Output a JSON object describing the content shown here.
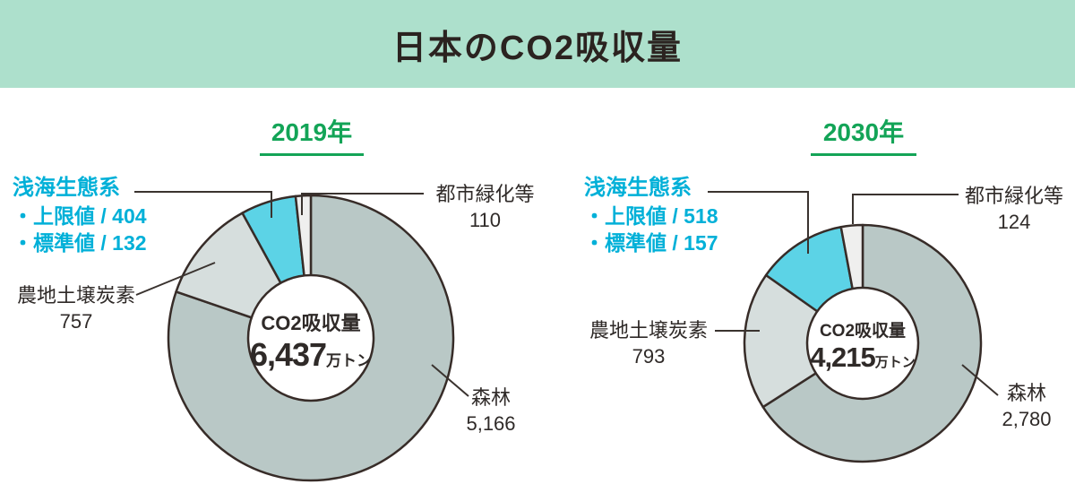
{
  "header": {
    "title": "日本のCO2吸収量"
  },
  "colors": {
    "header_bg": "#ade0cc",
    "year_green": "#13a457",
    "marine_text": "#00b0d8",
    "forest": "#b9c8c6",
    "farmland": "#d6dedd",
    "marine": "#5cd3e6",
    "urban": "#efefee",
    "stroke": "#372c28",
    "leader": "#3a332f",
    "text": "#2f2a28"
  },
  "chart_data": [
    {
      "type": "pie",
      "year_label": "2019年",
      "center_title": "CO2吸収量",
      "center_total": "6,437",
      "center_unit": "万トン",
      "total_value": 6437,
      "segments": [
        {
          "name": "森林",
          "display": "5,166",
          "value": 5166,
          "color_key": "forest"
        },
        {
          "name": "農地土壌炭素",
          "display": "757",
          "value": 757,
          "color_key": "farmland"
        },
        {
          "name": "浅海生態系",
          "display_upper": "・上限値 / 404",
          "display_standard": "・標準値 / 132",
          "value": 404,
          "color_key": "marine"
        },
        {
          "name": "都市緑化等",
          "display": "110",
          "value": 110,
          "color_key": "urban"
        }
      ]
    },
    {
      "type": "pie",
      "year_label": "2030年",
      "center_title": "CO2吸収量",
      "center_total": "4,215",
      "center_unit": "万トン",
      "total_value": 4215,
      "segments": [
        {
          "name": "森林",
          "display": "2,780",
          "value": 2780,
          "color_key": "forest"
        },
        {
          "name": "農地土壌炭素",
          "display": "793",
          "value": 793,
          "color_key": "farmland"
        },
        {
          "name": "浅海生態系",
          "display_upper": "・上限値 / 518",
          "display_standard": "・標準値 / 157",
          "value": 518,
          "color_key": "marine"
        },
        {
          "name": "都市緑化等",
          "display": "124",
          "value": 124,
          "color_key": "urban"
        }
      ]
    }
  ]
}
